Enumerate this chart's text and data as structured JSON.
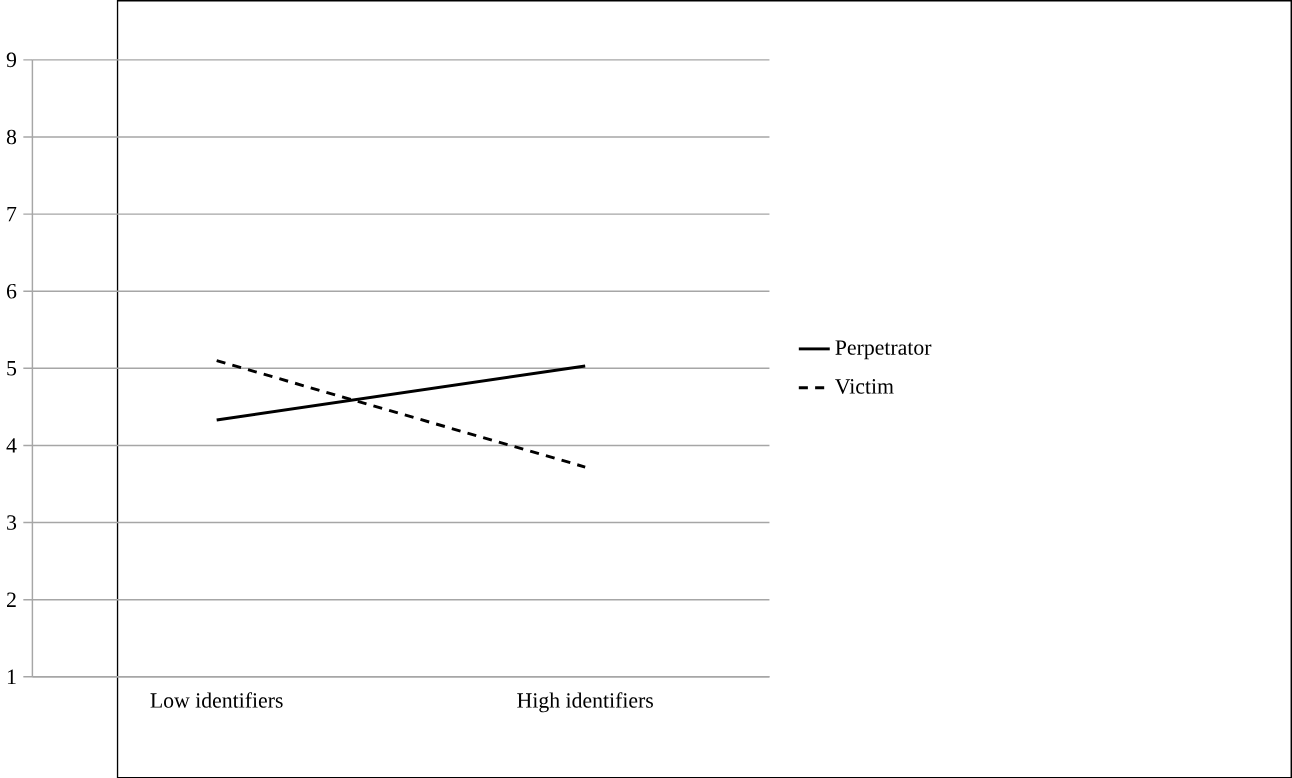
{
  "chart_data": {
    "type": "line",
    "categories": [
      "Low identifiers",
      "High identifiers"
    ],
    "series": [
      {
        "name": "Perpetrator",
        "color": "#000000",
        "values": [
          4.33,
          5.03
        ],
        "line_style": "solid"
      },
      {
        "name": "Victim",
        "color": "#000000",
        "values": [
          5.1,
          3.72
        ],
        "line_style": "dashed"
      }
    ],
    "ylim": [
      1,
      9
    ],
    "yticks": [
      1,
      2,
      3,
      4,
      5,
      6,
      7,
      8,
      9
    ],
    "grid": "y",
    "legend": "right",
    "marker": "none"
  }
}
